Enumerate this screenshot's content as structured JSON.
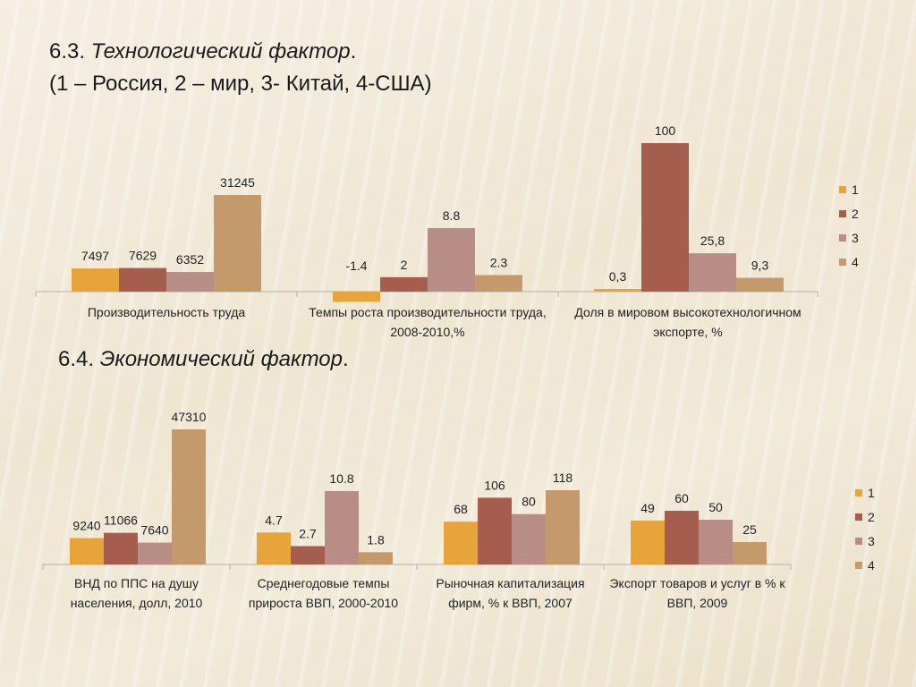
{
  "header": {
    "title1_prefix": "6.3. ",
    "title1_main": "Технологический фактор",
    "title1_suffix": ".",
    "subtitle1": "(1 – Россия, 2 – мир, 3- Китай, 4-США)",
    "title2_prefix": "6.4. ",
    "title2_main": "Экономический фактор",
    "title2_suffix": "."
  },
  "colors": {
    "series1": "#e8a33a",
    "series2": "#a55e4e",
    "series3": "#b88d86",
    "series4": "#c49a6c"
  },
  "chart_data": [
    {
      "type": "bar",
      "categories": [
        "Производительность труда",
        "Темпы роста производительности труда, 2008-2010,%",
        "Доля в мировом высокотехнологичном экспорте, %"
      ],
      "series": [
        {
          "name": "1",
          "values": [
            7497,
            -1.4,
            0.3
          ],
          "labels": [
            "7497",
            "-1.4",
            "0,3"
          ]
        },
        {
          "name": "2",
          "values": [
            7629,
            2,
            100
          ],
          "labels": [
            "7629",
            "2",
            "100"
          ]
        },
        {
          "name": "3",
          "values": [
            6352,
            8.8,
            25.8
          ],
          "labels": [
            "6352",
            "8.8",
            "25,8"
          ]
        },
        {
          "name": "4",
          "values": [
            31245,
            2.3,
            9.3
          ],
          "labels": [
            "31245",
            "2.3",
            "9,3"
          ]
        }
      ],
      "legend": [
        "1",
        "2",
        "3",
        "4"
      ],
      "legend_position": "right"
    },
    {
      "type": "bar",
      "categories": [
        "ВНД по ППС на душу населения, долл, 2010",
        "Среднегодовые темпы прироста ВВП, 2000-2010",
        "Рыночная капитализация фирм, % к ВВП, 2007",
        "Экспорт товаров и услуг в % к ВВП, 2009"
      ],
      "series": [
        {
          "name": "1",
          "values": [
            9240,
            4.7,
            68,
            49
          ],
          "labels": [
            "9240",
            "4.7",
            "68",
            "49"
          ]
        },
        {
          "name": "2",
          "values": [
            11066,
            2.7,
            106,
            60
          ],
          "labels": [
            "11066",
            "2.7",
            "106",
            "60"
          ]
        },
        {
          "name": "3",
          "values": [
            7640,
            10.8,
            80,
            50
          ],
          "labels": [
            "7640",
            "10.8",
            "80",
            "50"
          ]
        },
        {
          "name": "4",
          "values": [
            47310,
            1.8,
            118,
            25
          ],
          "labels": [
            "47310",
            "1.8",
            "118",
            "25"
          ]
        }
      ],
      "legend": [
        "1",
        "2",
        "3",
        "4"
      ],
      "legend_position": "right"
    }
  ]
}
